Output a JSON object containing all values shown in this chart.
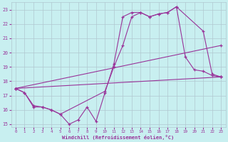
{
  "xlabel": "Windchill (Refroidissement éolien,°C)",
  "bg_color": "#c8eff0",
  "line_color": "#993399",
  "grid_color": "#b0c8d0",
  "xlim": [
    -0.5,
    23.5
  ],
  "ylim": [
    14.8,
    23.5
  ],
  "xticks": [
    0,
    1,
    2,
    3,
    4,
    5,
    6,
    7,
    8,
    9,
    10,
    11,
    12,
    13,
    14,
    15,
    16,
    17,
    18,
    19,
    20,
    21,
    22,
    23
  ],
  "yticks": [
    15,
    16,
    17,
    18,
    19,
    20,
    21,
    22,
    23
  ],
  "line1_x": [
    0,
    1,
    2,
    3,
    4,
    5,
    6,
    7,
    8,
    9,
    10,
    11,
    12,
    13,
    14,
    15,
    16,
    17,
    18,
    19,
    20,
    21,
    22,
    23
  ],
  "line1_y": [
    17.5,
    17.2,
    16.3,
    16.2,
    16.0,
    15.7,
    15.0,
    15.3,
    16.2,
    15.2,
    17.2,
    19.2,
    22.5,
    22.8,
    22.8,
    22.5,
    22.7,
    22.8,
    23.2,
    19.7,
    18.8,
    18.7,
    18.4,
    18.3
  ],
  "line2_x": [
    0,
    1,
    2,
    3,
    4,
    5,
    10,
    11,
    12,
    13,
    14,
    15,
    16,
    17,
    18,
    21,
    22,
    23
  ],
  "line2_y": [
    17.5,
    17.2,
    16.2,
    16.2,
    16.0,
    15.7,
    17.3,
    19.0,
    20.5,
    22.5,
    22.8,
    22.5,
    22.7,
    22.8,
    23.2,
    21.5,
    18.5,
    18.3
  ],
  "line3_x": [
    0,
    23
  ],
  "line3_y": [
    17.5,
    20.5
  ],
  "line4_x": [
    0,
    23
  ],
  "line4_y": [
    17.5,
    18.3
  ]
}
